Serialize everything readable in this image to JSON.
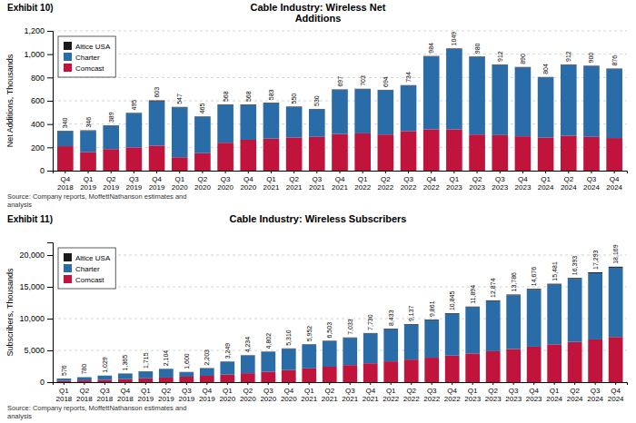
{
  "chart_data": [
    {
      "type": "bar",
      "stacked": true,
      "title": "Cable Industry: Wireless Net\nAdditions",
      "annotations": [
        "Exhibit 10)",
        "Source: Company reports, MoffettNathanson estimates and\nanalysis"
      ],
      "ylabel": "Net Additions, Thousands",
      "categories": [
        "Q4\n2018",
        "Q1\n2019",
        "Q2\n2019",
        "Q3\n2019",
        "Q4\n2019",
        "Q1\n2020",
        "Q2\n2020",
        "Q3\n2020",
        "Q4\n2020",
        "Q1\n2021",
        "Q2\n2021",
        "Q3\n2021",
        "Q4\n2021",
        "Q1\n2022",
        "Q2\n2022",
        "Q3\n2022",
        "Q4\n2022",
        "Q1\n2023",
        "Q2\n2023",
        "Q3\n2023",
        "Q4\n2023",
        "Q1\n2024",
        "Q2\n2024",
        "Q3\n2024",
        "Q4\n2024"
      ],
      "series": [
        {
          "name": "Comcast",
          "color": "#c0143c",
          "values": [
            210,
            160,
            185,
            200,
            215,
            115,
            150,
            240,
            265,
            275,
            285,
            290,
            315,
            320,
            310,
            340,
            355,
            355,
            310,
            305,
            295,
            285,
            300,
            290,
            280
          ]
        },
        {
          "name": "Charter",
          "color": "#2a6ca8",
          "values": [
            125,
            181,
            200,
            290,
            380,
            427,
            311,
            323,
            298,
            303,
            261,
            236,
            378,
            379,
            380,
            390,
            625,
            690,
            666,
            603,
            591,
            515,
            608,
            606,
            592
          ]
        },
        {
          "name": "Altice USA",
          "color": "#1a1a1a",
          "values": [
            5,
            5,
            4,
            5,
            8,
            5,
            4,
            5,
            5,
            5,
            4,
            4,
            4,
            4,
            4,
            4,
            4,
            4,
            4,
            4,
            4,
            4,
            4,
            4,
            4
          ]
        }
      ],
      "totals": [
        340,
        346,
        389,
        495,
        603,
        547,
        465,
        568,
        568,
        583,
        550,
        530,
        697,
        703,
        694,
        734,
        984,
        1049,
        980,
        912,
        890,
        804,
        912,
        900,
        876
      ],
      "data_labels": true,
      "ylim": [
        0,
        1200
      ],
      "yticks": [
        0,
        200,
        400,
        600,
        800,
        {
          "value": 1000,
          "label": "1,000"
        },
        {
          "value": 1200,
          "label": "1,200"
        }
      ],
      "grid": true,
      "legend": "upper left"
    },
    {
      "type": "bar",
      "stacked": true,
      "title": "Cable Industry: Wireless Subscribers",
      "annotations": [
        "Exhibit 11)",
        "Source: Company reports, MoffettNathanson estimates and\nanalysis"
      ],
      "ylabel": "Subscribers, Thousands",
      "categories": [
        "Q1\n2018",
        "Q2\n2018",
        "Q3\n2018",
        "Q4\n2018",
        "Q1\n2019",
        "Q2\n2019",
        "Q3\n2019",
        "Q4\n2019",
        "Q1\n2020",
        "Q2\n2020",
        "Q3\n2020",
        "Q4\n2020",
        "Q1\n2021",
        "Q2\n2021",
        "Q3\n2021",
        "Q4\n2021",
        "Q1\n2022",
        "Q2\n2022",
        "Q3\n2022",
        "Q4\n2022",
        "Q1\n2023",
        "Q2\n2023",
        "Q3\n2023",
        "Q4\n2023",
        "Q1\n2024",
        "Q2\n2024",
        "Q3\n2024",
        "Q4\n2024"
      ],
      "series": [
        {
          "name": "Comcast",
          "color": "#c0143c",
          "values": [
            200,
            270,
            370,
            480,
            610,
            720,
            860,
            1000,
            1190,
            1410,
            1640,
            1900,
            2170,
            2430,
            2690,
            2970,
            3270,
            3550,
            3850,
            4180,
            4520,
            4870,
            5220,
            5580,
            5950,
            6330,
            6720,
            7110
          ]
        },
        {
          "name": "Charter",
          "color": "#2a6ca8",
          "values": [
            361,
            490,
            634,
            855,
            1070,
            1344,
            695,
            1153,
            2004,
            2764,
            3097,
            3340,
            3707,
            3993,
            4258,
            4670,
            5068,
            5487,
            5906,
            6555,
            7259,
            7884,
            8441,
            8966,
            9396,
            9923,
            10428,
            10909
          ]
        },
        {
          "name": "Altice USA",
          "color": "#1a1a1a",
          "values": [
            15,
            20,
            25,
            30,
            35,
            40,
            45,
            50,
            55,
            60,
            65,
            70,
            75,
            80,
            85,
            90,
            95,
            100,
            105,
            110,
            115,
            120,
            125,
            130,
            135,
            140,
            145,
            150
          ]
        }
      ],
      "totals": [
        576,
        780,
        1029,
        1365,
        1715,
        2104,
        1600,
        2203,
        3249,
        4234,
        4802,
        5310,
        5952,
        6503,
        7033,
        7730,
        8433,
        9137,
        9861,
        10845,
        11894,
        12874,
        13786,
        14676,
        15481,
        16393,
        17293,
        18169
      ],
      "total_labels": [
        "576",
        "780",
        "1,029",
        "1,365",
        "1,715",
        "2,104",
        "1,600",
        "2,203",
        "3,249",
        "4,234",
        "4,802",
        "5,310",
        "5,952",
        "6,503",
        "7,033",
        "7,730",
        "8,433",
        "9,137",
        "9,861",
        "10,845",
        "11,894",
        "12,874",
        "13,786",
        "14,676",
        "15,481",
        "16,393",
        "17,293",
        "18,169"
      ],
      "data_labels": true,
      "ylim": [
        0,
        22000
      ],
      "yticks": [
        0,
        {
          "value": 5000,
          "label": "5,000"
        },
        {
          "value": 10000,
          "label": "10,000"
        },
        {
          "value": 15000,
          "label": "15,000"
        },
        {
          "value": 20000,
          "label": "20,000"
        }
      ],
      "grid": true,
      "legend": "upper left"
    }
  ]
}
